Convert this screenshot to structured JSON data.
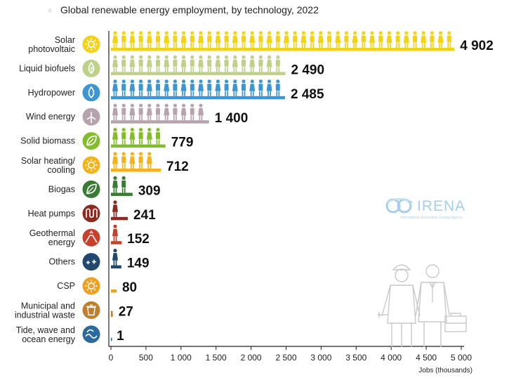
{
  "title": "Global renewable energy employment, by technology, 2022",
  "watermark": {
    "brand": "IRENA",
    "subtitle": "International Renewable Energy Agency"
  },
  "chart_data": {
    "type": "bar",
    "orientation": "horizontal",
    "title": "Global renewable energy employment, by technology, 2022",
    "xlabel": "Jobs (thousands)",
    "ylabel": "",
    "xlim": [
      0,
      5000
    ],
    "x_ticks": [
      0,
      500,
      1000,
      1500,
      2000,
      2500,
      3000,
      3500,
      4000,
      4500,
      5000
    ],
    "x_tick_labels": [
      "0",
      "500",
      "1 000",
      "1 500",
      "2 000",
      "2 500",
      "3 000",
      "3 500",
      "4 000",
      "4 500",
      "5 000"
    ],
    "categories": [
      "Solar photovoltaic",
      "Liquid biofuels",
      "Hydropower",
      "Wind energy",
      "Solid biomass",
      "Solar heating/ cooling",
      "Biogas",
      "Heat pumps",
      "Geothermal energy",
      "Others",
      "CSP",
      "Municipal and industrial waste",
      "Tide, wave and ocean energy"
    ],
    "category_lines": [
      [
        "Solar",
        "photovoltaic"
      ],
      [
        "Liquid biofuels"
      ],
      [
        "Hydropower"
      ],
      [
        "Wind energy"
      ],
      [
        "Solid biomass"
      ],
      [
        "Solar heating/",
        "cooling"
      ],
      [
        "Biogas"
      ],
      [
        "Heat pumps"
      ],
      [
        "Geothermal",
        "energy"
      ],
      [
        "Others"
      ],
      [
        "CSP"
      ],
      [
        "Municipal and",
        "industrial waste"
      ],
      [
        "Tide, wave and",
        "ocean energy"
      ]
    ],
    "values": [
      4902,
      2490,
      2485,
      1400,
      779,
      712,
      309,
      241,
      152,
      149,
      80,
      27,
      1
    ],
    "value_labels": [
      "4 902",
      "2 490",
      "2 485",
      "1 400",
      "779",
      "712",
      "309",
      "241",
      "152",
      "149",
      "80",
      "27",
      "1"
    ],
    "colors": [
      "#f2d21b",
      "#bfd08a",
      "#3d96d2",
      "#b7a3ae",
      "#84bd2b",
      "#f4b31b",
      "#3a7b33",
      "#8c2a20",
      "#c6402b",
      "#22486e",
      "#f0a020",
      "#c17e2c",
      "#2a6a9e"
    ],
    "icons": [
      "sun-icon",
      "leaf-drop-icon",
      "water-drop-icon",
      "wind-turbine-icon",
      "leaf-icon",
      "sun-icon",
      "leaf-icon",
      "heat-coil-icon",
      "volcano-icon",
      "plus-icon",
      "sun-icon",
      "trash-bin-icon",
      "wave-icon"
    ],
    "grid": false,
    "legend": "none"
  }
}
